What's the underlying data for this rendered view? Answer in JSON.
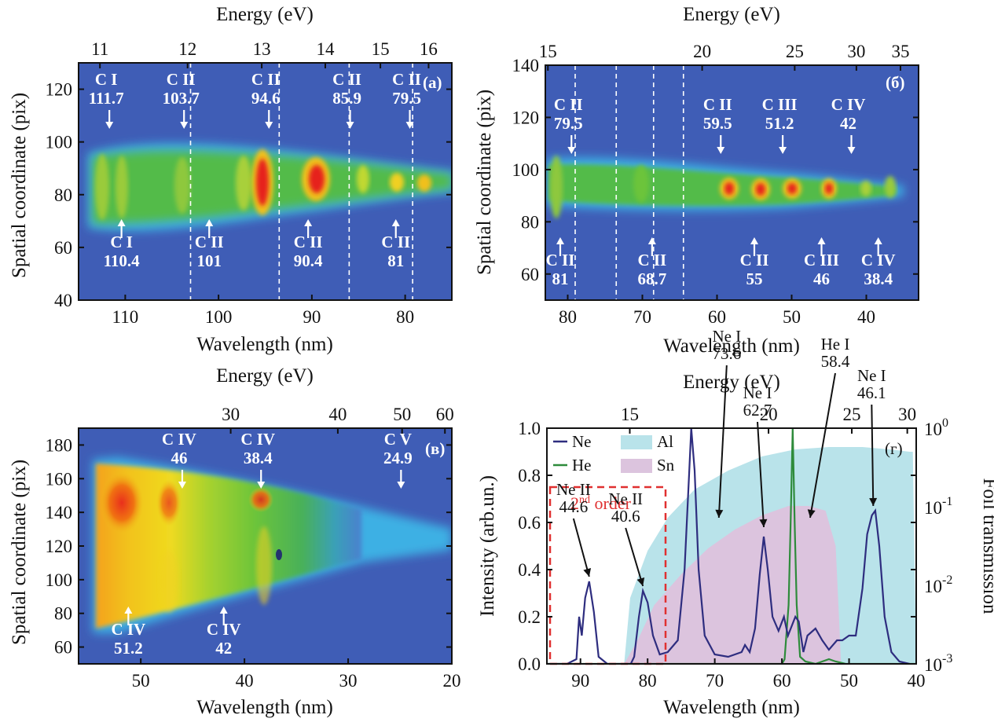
{
  "colors": {
    "plot_bg": "#3f5db6",
    "arrow_white": "#ffffff",
    "ne": "#2e2d7f",
    "he": "#2e8b3b",
    "al": "#b9e3ea",
    "sn": "#dcc4de",
    "box": "#e03030"
  },
  "chart_data": [
    {
      "id": "a",
      "type": "heatmap",
      "panel_label": "(a)",
      "xlabel": "Wavelength (nm)",
      "ylabel": "Spatial coordinate (pix)",
      "top_label": "Energy (eV)",
      "xlim": [
        115,
        75
      ],
      "ylim": [
        40,
        130
      ],
      "xticks": [
        110,
        100,
        90,
        80
      ],
      "yticks": [
        40,
        60,
        80,
        100,
        120
      ],
      "energy_ticks": [
        11,
        12,
        13,
        14,
        15,
        16
      ],
      "dashed_lines_nm": [
        103,
        93.5,
        86,
        79.2
      ],
      "annotations": [
        {
          "name": "C I",
          "value": "111.7",
          "x": 111.7,
          "pos": "above"
        },
        {
          "name": "C II",
          "value": "103.7",
          "x": 103.7,
          "pos": "above"
        },
        {
          "name": "C II",
          "value": "94.6",
          "x": 94.6,
          "pos": "above"
        },
        {
          "name": "C II",
          "value": "85.9",
          "x": 85.9,
          "pos": "above"
        },
        {
          "name": "C II",
          "value": "79.5",
          "x": 79.5,
          "pos": "above"
        },
        {
          "name": "C I",
          "value": "110.4",
          "x": 110.4,
          "pos": "below"
        },
        {
          "name": "C II",
          "value": "101",
          "x": 101,
          "pos": "below"
        },
        {
          "name": "C II",
          "value": "90.4",
          "x": 90.4,
          "pos": "below"
        },
        {
          "name": "C II",
          "value": "81",
          "x": 81,
          "pos": "below"
        }
      ]
    },
    {
      "id": "b",
      "type": "heatmap",
      "panel_label": "(б)",
      "xlabel": "Wavelength (nm)",
      "ylabel": "Spatial coordinate (pix)",
      "top_label": "Energy (eV)",
      "xlim": [
        83,
        33
      ],
      "ylim": [
        50,
        140
      ],
      "xticks": [
        80,
        70,
        60,
        50,
        40
      ],
      "yticks": [
        60,
        80,
        100,
        120,
        140
      ],
      "energy_ticks": [
        15,
        20,
        25,
        30,
        35
      ],
      "dashed_lines_nm": [
        79,
        73.5,
        68.5,
        64.5
      ],
      "annotations": [
        {
          "name": "C II",
          "value": "79.5",
          "x": 79.5,
          "pos": "above"
        },
        {
          "name": "C II",
          "value": "59.5",
          "x": 59.5,
          "pos": "above"
        },
        {
          "name": "C III",
          "value": "51.2",
          "x": 51.2,
          "pos": "above"
        },
        {
          "name": "C IV",
          "value": "42",
          "x": 42,
          "pos": "above"
        },
        {
          "name": "C II",
          "value": "81",
          "x": 81,
          "pos": "below"
        },
        {
          "name": "C II",
          "value": "68.7",
          "x": 68.7,
          "pos": "below"
        },
        {
          "name": "C II",
          "value": "55",
          "x": 55,
          "pos": "below"
        },
        {
          "name": "C III",
          "value": "46",
          "x": 46,
          "pos": "below"
        },
        {
          "name": "C IV",
          "value": "38.4",
          "x": 38.4,
          "pos": "below"
        }
      ]
    },
    {
      "id": "c",
      "type": "heatmap",
      "panel_label": "(в)",
      "xlabel": "Wavelength (nm)",
      "ylabel": "Spatial coordinate (pix)",
      "top_label": "Energy (eV)",
      "xlim": [
        56,
        20
      ],
      "ylim": [
        50,
        190
      ],
      "xticks": [
        50,
        40,
        30,
        20
      ],
      "yticks": [
        60,
        80,
        100,
        120,
        140,
        160,
        180
      ],
      "energy_ticks": [
        30,
        40,
        50,
        60
      ],
      "annotations": [
        {
          "name": "C IV",
          "value": "46",
          "x": 46,
          "pos": "above"
        },
        {
          "name": "C IV",
          "value": "38.4",
          "x": 38.4,
          "pos": "above"
        },
        {
          "name": "C V",
          "value": "24.9",
          "x": 24.9,
          "pos": "above"
        },
        {
          "name": "C IV",
          "value": "51.2",
          "x": 51.2,
          "pos": "below"
        },
        {
          "name": "C IV",
          "value": "42",
          "x": 42,
          "pos": "below"
        }
      ]
    },
    {
      "id": "d",
      "type": "line",
      "panel_label": "(г)",
      "xlabel": "Wavelength (nm)",
      "ylabel": "Intensity (arb.un.)",
      "y2label": "Foil transmission",
      "top_label": "Energy (eV)",
      "xlim": [
        95,
        40
      ],
      "ylim": [
        0,
        1.0
      ],
      "xticks": [
        90,
        80,
        70,
        60,
        50,
        40
      ],
      "yticks": [
        "0.0",
        "0.2",
        "0.4",
        "0.6",
        "0.8",
        "1.0"
      ],
      "y2ticks": [
        -3,
        -2,
        -1,
        0
      ],
      "energy_ticks": [
        15,
        20,
        25,
        30
      ],
      "legend": [
        "Ne",
        "He",
        "Al",
        "Sn"
      ],
      "box_label": "2nd order",
      "series": [
        {
          "name": "Ne",
          "points": [
            [
              95,
              0.0
            ],
            [
              92,
              0.0
            ],
            [
              90.6,
              0.02
            ],
            [
              90.2,
              0.2
            ],
            [
              89.8,
              0.12
            ],
            [
              89.3,
              0.28
            ],
            [
              88.7,
              0.35
            ],
            [
              88,
              0.22
            ],
            [
              87.3,
              0.03
            ],
            [
              86,
              0.0
            ],
            [
              82.5,
              0.0
            ],
            [
              82,
              0.03
            ],
            [
              81.3,
              0.2
            ],
            [
              80.7,
              0.31
            ],
            [
              80,
              0.26
            ],
            [
              79.2,
              0.12
            ],
            [
              78.2,
              0.04
            ],
            [
              77,
              0.05
            ],
            [
              75.5,
              0.1
            ],
            [
              74.5,
              0.4
            ],
            [
              73.8,
              0.82
            ],
            [
              73.5,
              1.0
            ],
            [
              73,
              0.82
            ],
            [
              72.4,
              0.4
            ],
            [
              71.5,
              0.12
            ],
            [
              70,
              0.04
            ],
            [
              68,
              0.03
            ],
            [
              66,
              0.05
            ],
            [
              65.5,
              0.08
            ],
            [
              64.8,
              0.05
            ],
            [
              64,
              0.15
            ],
            [
              63.3,
              0.38
            ],
            [
              62.7,
              0.54
            ],
            [
              62.1,
              0.4
            ],
            [
              61.4,
              0.2
            ],
            [
              60.5,
              0.14
            ],
            [
              59.7,
              0.2
            ],
            [
              59.1,
              0.12
            ],
            [
              58,
              0.2
            ],
            [
              57.5,
              0.18
            ],
            [
              56.8,
              0.05
            ],
            [
              56.2,
              0.12
            ],
            [
              55,
              0.15
            ],
            [
              54,
              0.1
            ],
            [
              53,
              0.06
            ],
            [
              51.8,
              0.1
            ],
            [
              51,
              0.1
            ],
            [
              50,
              0.12
            ],
            [
              49,
              0.12
            ],
            [
              48,
              0.32
            ],
            [
              47.3,
              0.55
            ],
            [
              46.6,
              0.63
            ],
            [
              46.1,
              0.65
            ],
            [
              45.5,
              0.5
            ],
            [
              44.7,
              0.2
            ],
            [
              43.7,
              0.05
            ],
            [
              42.5,
              0.01
            ],
            [
              41,
              0.0
            ]
          ]
        },
        {
          "name": "He",
          "points": [
            [
              95,
              0.0
            ],
            [
              60,
              0.0
            ],
            [
              59.6,
              0.02
            ],
            [
              59,
              0.25
            ],
            [
              58.7,
              0.6
            ],
            [
              58.4,
              1.0
            ],
            [
              58.1,
              0.6
            ],
            [
              57.8,
              0.25
            ],
            [
              57.3,
              0.03
            ],
            [
              56.5,
              0.01
            ],
            [
              55,
              0.0
            ],
            [
              53,
              0.02
            ],
            [
              52,
              0.01
            ],
            [
              50.5,
              0.0
            ],
            [
              40,
              0.0
            ]
          ]
        }
      ],
      "fill_al": [
        [
          95,
          0.0
        ],
        [
          83.5,
          0.0
        ],
        [
          82.6,
          0.28
        ],
        [
          80,
          0.48
        ],
        [
          77,
          0.62
        ],
        [
          73,
          0.74
        ],
        [
          68,
          0.82
        ],
        [
          63,
          0.88
        ],
        [
          58,
          0.91
        ],
        [
          53,
          0.92
        ],
        [
          48,
          0.92
        ],
        [
          44,
          0.91
        ],
        [
          41,
          0.9
        ],
        [
          40.5,
          0.9
        ],
        [
          40,
          0.0
        ]
      ],
      "fill_sn": [
        [
          95,
          0.0
        ],
        [
          83.5,
          0.0
        ],
        [
          81.5,
          0.1
        ],
        [
          79,
          0.25
        ],
        [
          75,
          0.38
        ],
        [
          71,
          0.49
        ],
        [
          67,
          0.57
        ],
        [
          63,
          0.63
        ],
        [
          59,
          0.67
        ],
        [
          56,
          0.67
        ],
        [
          53.5,
          0.65
        ],
        [
          52,
          0.5
        ],
        [
          51.5,
          0.2
        ],
        [
          51.2,
          0.0
        ],
        [
          40,
          0.0
        ]
      ],
      "annotations": [
        {
          "name": "Ne II",
          "value": "44.6",
          "x": 88.7,
          "y": 0.35
        },
        {
          "name": "Ne II",
          "value": "40.6",
          "x": 80.7,
          "y": 0.31
        },
        {
          "name": "Ne I",
          "value": "73.6",
          "x": 71.5,
          "y": 0.6
        },
        {
          "name": "Ne I",
          "value": "62.7",
          "x": 62.7,
          "y": 0.56
        },
        {
          "name": "He I",
          "value": "58.4",
          "x": 56.5,
          "y": 0.6
        },
        {
          "name": "Ne I",
          "value": "46.1",
          "x": 46.4,
          "y": 0.65
        }
      ]
    }
  ]
}
